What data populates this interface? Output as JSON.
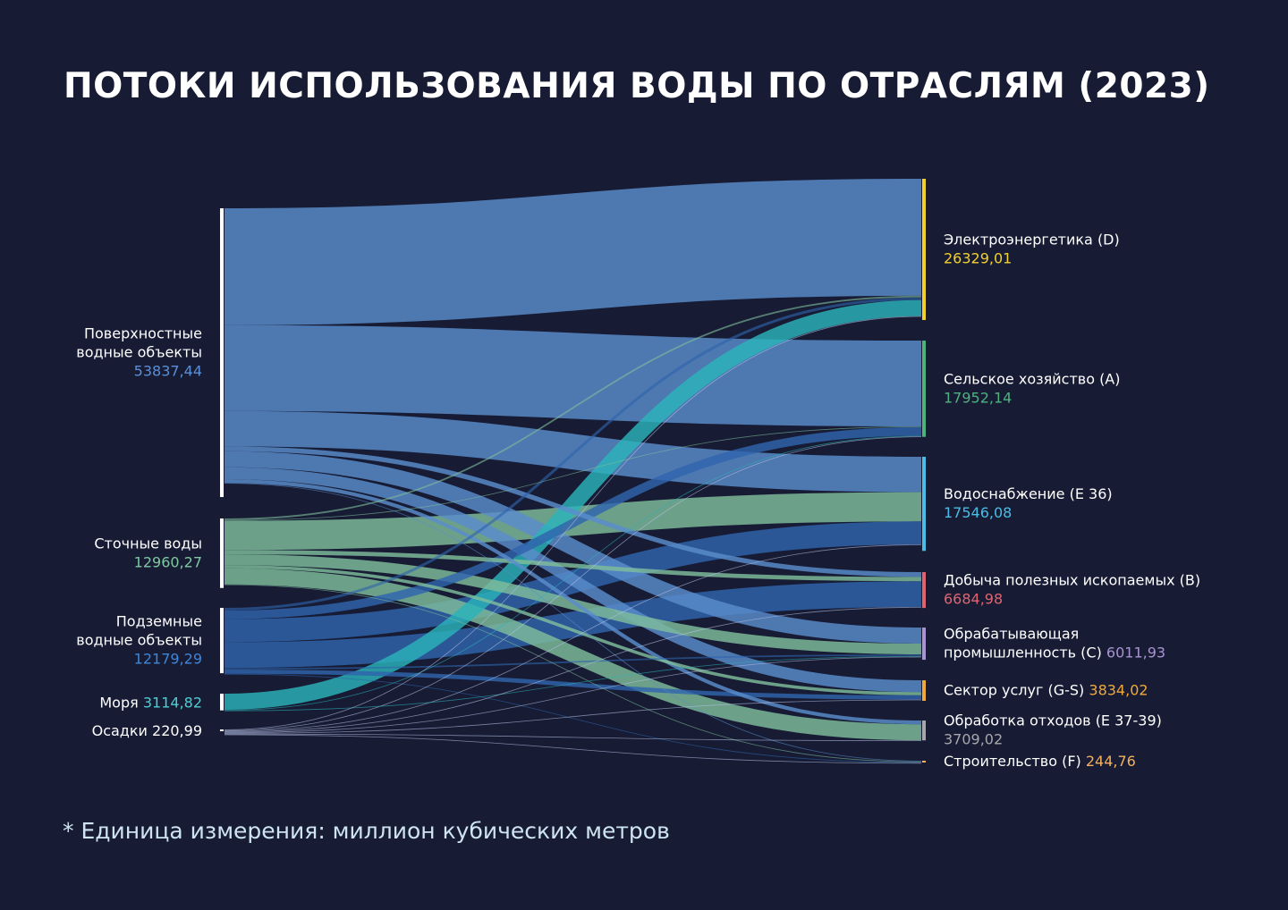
{
  "title": "ПОТОКИ ИСПОЛЬЗОВАНИЯ ВОДЫ ПО ОТРАСЛЯМ (2023)",
  "footnote": "* Единица измерения: миллион кубических метров",
  "chart_data": {
    "type": "sankey",
    "unit": "миллион кубических метров",
    "sources": [
      {
        "id": "surface",
        "label_lines": [
          "Поверхностные",
          "водные объекты"
        ],
        "value": 53837.44,
        "value_text": "53837,44",
        "color": "#5b8fd6",
        "flow_color": "#5a8ccc",
        "label_layout": "stacked"
      },
      {
        "id": "waste",
        "label_lines": [
          "Сточные воды"
        ],
        "value": 12960.27,
        "value_text": "12960,27",
        "color": "#7ec8a0",
        "flow_color": "#7fbd9c",
        "label_layout": "stacked"
      },
      {
        "id": "ground",
        "label_lines": [
          "Подземные",
          "водные объекты"
        ],
        "value": 12179.29,
        "value_text": "12179,29",
        "color": "#3f86d8",
        "flow_color": "#2f64ad",
        "label_layout": "stacked"
      },
      {
        "id": "sea",
        "label_lines": [
          "Моря"
        ],
        "value": 3114.82,
        "value_text": "3114,82",
        "color": "#4ccfd2",
        "flow_color": "#2bb3ba",
        "label_layout": "inline"
      },
      {
        "id": "rain",
        "label_lines": [
          "Осадки"
        ],
        "value": 220.99,
        "value_text": "220,99",
        "color": "#ffffff",
        "flow_color": "#b8c2e6",
        "label_layout": "inline"
      }
    ],
    "targets": [
      {
        "id": "D",
        "label_lines": [
          "Электроэнергетика (D)"
        ],
        "value": 26329.01,
        "value_text": "26329,01",
        "color": "#f2d12c",
        "label_layout": "stacked"
      },
      {
        "id": "A",
        "label_lines": [
          "Сельское хозяйство (A)"
        ],
        "value": 17952.14,
        "value_text": "17952,14",
        "color": "#4cb37e",
        "label_layout": "stacked"
      },
      {
        "id": "E36",
        "label_lines": [
          "Водоснабжение (E 36)"
        ],
        "value": 17546.08,
        "value_text": "17546,08",
        "color": "#49bde6",
        "label_layout": "stacked"
      },
      {
        "id": "B",
        "label_lines": [
          "Добыча полезных ископаемых (B)"
        ],
        "value": 6684.98,
        "value_text": "6684,98",
        "color": "#e06470",
        "label_layout": "stacked"
      },
      {
        "id": "C",
        "label_lines": [
          "Обрабатывающая",
          "промышленность (C)"
        ],
        "value": 6011.93,
        "value_text": "6011,93",
        "color": "#a994d2",
        "label_layout": "inline"
      },
      {
        "id": "GS",
        "label_lines": [
          "Сектор услуг (G-S)"
        ],
        "value": 3834.02,
        "value_text": "3834,02",
        "color": "#f1a83a",
        "label_layout": "inline"
      },
      {
        "id": "E3739",
        "label_lines": [
          "Обработка отходов (E 37-39)"
        ],
        "value": 3709.02,
        "value_text": "3709,02",
        "color": "#a7a7ab",
        "label_layout": "stacked"
      },
      {
        "id": "F",
        "label_lines": [
          "Строительство (F)"
        ],
        "value": 244.76,
        "value_text": "244,76",
        "color": "#f4b05c",
        "label_layout": "inline"
      }
    ],
    "flows": [
      {
        "source": "surface",
        "target": "D",
        "value": 21800
      },
      {
        "source": "surface",
        "target": "A",
        "value": 16000
      },
      {
        "source": "surface",
        "target": "E36",
        "value": 6600
      },
      {
        "source": "surface",
        "target": "B",
        "value": 900
      },
      {
        "source": "surface",
        "target": "C",
        "value": 3000
      },
      {
        "source": "surface",
        "target": "GS",
        "value": 2200
      },
      {
        "source": "surface",
        "target": "E3739",
        "value": 700
      },
      {
        "source": "surface",
        "target": "F",
        "value": 60
      },
      {
        "source": "waste",
        "target": "D",
        "value": 300
      },
      {
        "source": "waste",
        "target": "A",
        "value": 100
      },
      {
        "source": "waste",
        "target": "E36",
        "value": 5450
      },
      {
        "source": "waste",
        "target": "B",
        "value": 800
      },
      {
        "source": "waste",
        "target": "C",
        "value": 2000
      },
      {
        "source": "waste",
        "target": "GS",
        "value": 600
      },
      {
        "source": "waste",
        "target": "E3739",
        "value": 3000
      },
      {
        "source": "waste",
        "target": "F",
        "value": 30
      },
      {
        "source": "ground",
        "target": "D",
        "value": 500
      },
      {
        "source": "ground",
        "target": "A",
        "value": 1600
      },
      {
        "source": "ground",
        "target": "E36",
        "value": 4300
      },
      {
        "source": "ground",
        "target": "B",
        "value": 4800
      },
      {
        "source": "ground",
        "target": "C",
        "value": 300
      },
      {
        "source": "ground",
        "target": "GS",
        "value": 800
      },
      {
        "source": "ground",
        "target": "F",
        "value": 100
      },
      {
        "source": "sea",
        "target": "D",
        "value": 3000
      },
      {
        "source": "sea",
        "target": "A",
        "value": 50
      },
      {
        "source": "sea",
        "target": "C",
        "value": 30
      },
      {
        "source": "rain",
        "target": "D",
        "value": 30
      },
      {
        "source": "rain",
        "target": "A",
        "value": 50
      },
      {
        "source": "rain",
        "target": "E36",
        "value": 40
      },
      {
        "source": "rain",
        "target": "B",
        "value": 30
      },
      {
        "source": "rain",
        "target": "C",
        "value": 20
      },
      {
        "source": "rain",
        "target": "GS",
        "value": 20
      },
      {
        "source": "rain",
        "target": "E3739",
        "value": 15
      },
      {
        "source": "rain",
        "target": "F",
        "value": 10
      }
    ]
  }
}
